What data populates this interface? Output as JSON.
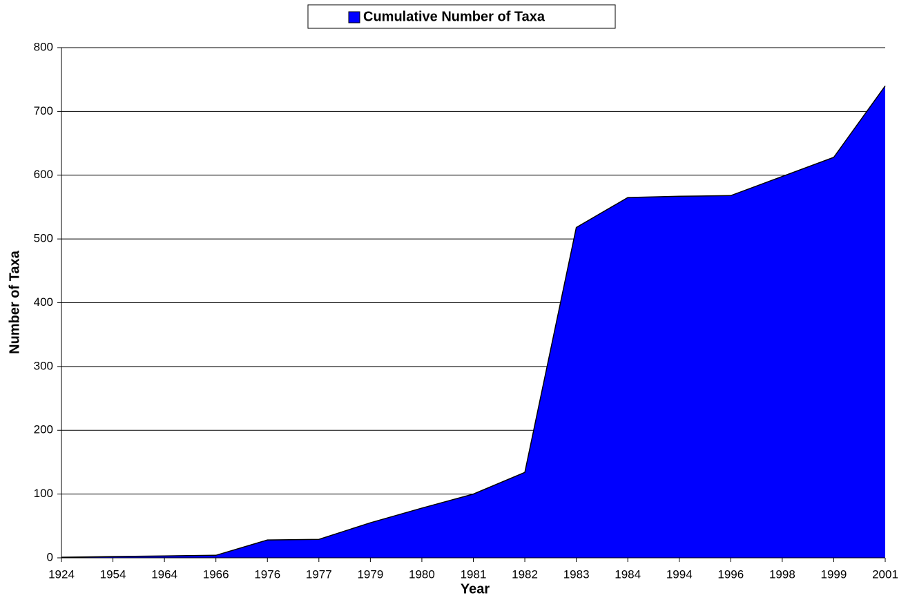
{
  "chart_data": {
    "type": "area",
    "legend_position": "top-center",
    "grid": true,
    "categories": [
      "1924",
      "1954",
      "1964",
      "1966",
      "1976",
      "1977",
      "1979",
      "1980",
      "1981",
      "1982",
      "1983",
      "1984",
      "1994",
      "1996",
      "1998",
      "1999",
      "2001"
    ],
    "series": [
      {
        "name": "Cumulative Number of Taxa",
        "color": "#0000ff",
        "values": [
          1,
          2,
          3,
          4,
          28,
          29,
          55,
          78,
          100,
          134,
          518,
          565,
          567,
          568,
          598,
          628,
          740
        ]
      }
    ],
    "xlabel": "Year",
    "ylabel": "Number of Taxa",
    "ylim": [
      0,
      800
    ],
    "yticks": [
      "0",
      "100",
      "200",
      "300",
      "400",
      "500",
      "600",
      "700",
      "800"
    ]
  }
}
